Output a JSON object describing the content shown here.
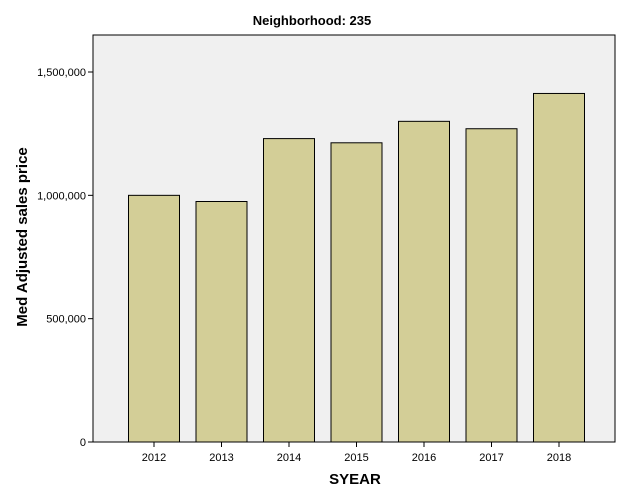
{
  "chart_data": {
    "type": "bar",
    "title": "Neighborhood: 235",
    "xlabel": "SYEAR",
    "ylabel": "Med Adjusted sales price",
    "categories": [
      "2012",
      "2013",
      "2014",
      "2015",
      "2016",
      "2017",
      "2018"
    ],
    "values": [
      1000000,
      975000,
      1230000,
      1213000,
      1300000,
      1270000,
      1413000
    ],
    "ylim": [
      0,
      1650000
    ],
    "yticks": [
      0,
      500000,
      1000000,
      1500000
    ],
    "ytick_labels": [
      "0",
      "500,000",
      "1,000,000",
      "1,500,000"
    ],
    "grid": false,
    "colors": {
      "plot_background": "#f0f0f0",
      "bar_fill": "#d3ce97",
      "bar_stroke": "#000000"
    }
  }
}
